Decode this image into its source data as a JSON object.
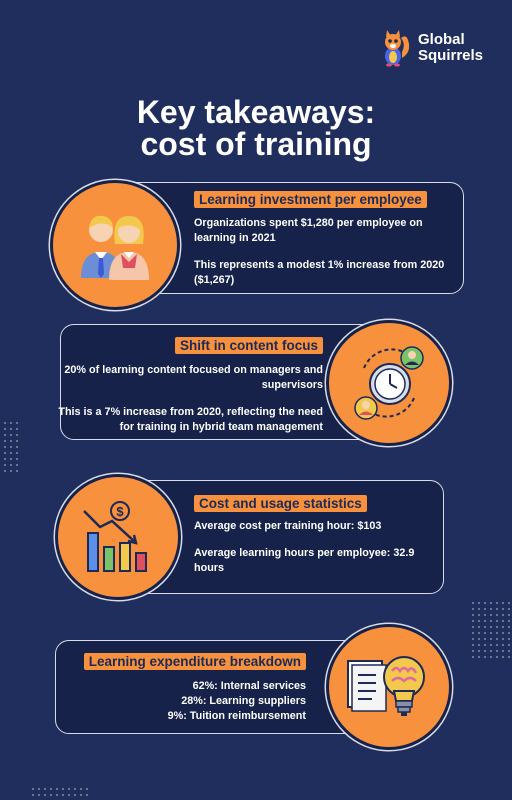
{
  "logo": {
    "line1": "Global",
    "line2": "Squirrels"
  },
  "title": {
    "line1": "Key takeaways:",
    "line2": "cost of training"
  },
  "sections": [
    {
      "heading": "Learning investment per employee",
      "p1": "Organizations spent $1,280 per employee on learning in 2021",
      "p2": "This represents a modest 1% increase from 2020 ($1,267)",
      "icon": "employees-icon"
    },
    {
      "heading": "Shift in content focus",
      "p1": "20% of learning content focused on managers and supervisors",
      "p2": "This is a 7% increase from 2020, reflecting the need for training in hybrid team management",
      "icon": "clock-people-icon"
    },
    {
      "heading": "Cost and usage statistics",
      "p1": "Average cost per training hour: $103",
      "p2": "Average learning hours per employee: 32.9 hours",
      "icon": "cost-chart-icon"
    },
    {
      "heading": "Learning expenditure breakdown",
      "lines": [
        "62%: Internal services",
        "28%: Learning suppliers",
        "9%: Tuition reimbursement"
      ],
      "icon": "brain-lightbulb-icon"
    }
  ],
  "colors": {
    "background": "#1f2e5c",
    "card": "#16224a",
    "accent": "#f7913d"
  }
}
